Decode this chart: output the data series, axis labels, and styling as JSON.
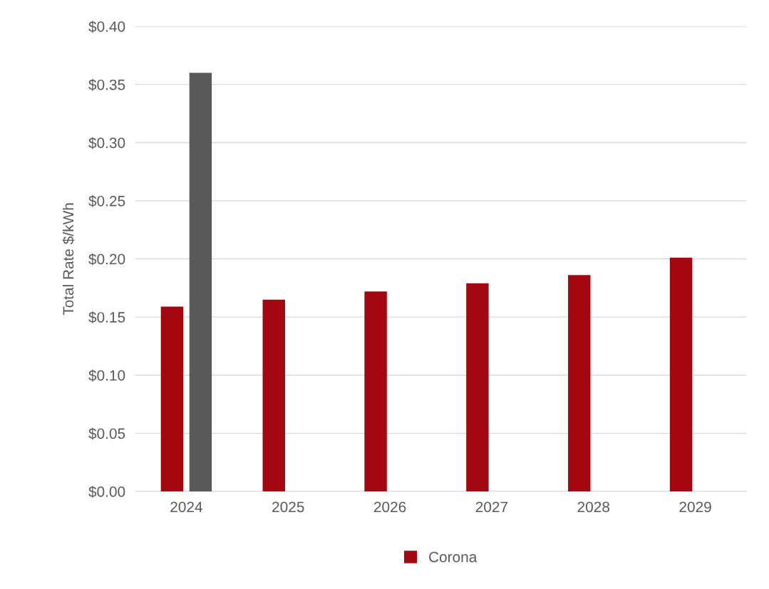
{
  "chart_data": {
    "type": "bar",
    "ylabel": "Total Rate $/kWh",
    "categories": [
      "2024",
      "2025",
      "2026",
      "2027",
      "2028",
      "2029"
    ],
    "series": [
      {
        "name": "Corona",
        "color": "#a50710",
        "values": [
          0.159,
          0.165,
          0.172,
          0.179,
          0.186,
          0.201
        ]
      },
      {
        "color": "#595959",
        "values": [
          0.36,
          null,
          null,
          null,
          null,
          null
        ]
      }
    ],
    "ylim": [
      0,
      0.4
    ],
    "yticks": [
      {
        "value": 0,
        "label": "$0.00"
      },
      {
        "value": 0.05,
        "label": "$0.05"
      },
      {
        "value": 0.1,
        "label": "$0.10"
      },
      {
        "value": 0.15,
        "label": "$0.15"
      },
      {
        "value": 0.2,
        "label": "$0.20"
      },
      {
        "value": 0.25,
        "label": "$0.25"
      },
      {
        "value": 0.3,
        "label": "$0.30"
      },
      {
        "value": 0.35,
        "label": "$0.35"
      },
      {
        "value": 0.4,
        "label": "$0.40"
      }
    ],
    "grid": "y",
    "legend": "bottom"
  }
}
